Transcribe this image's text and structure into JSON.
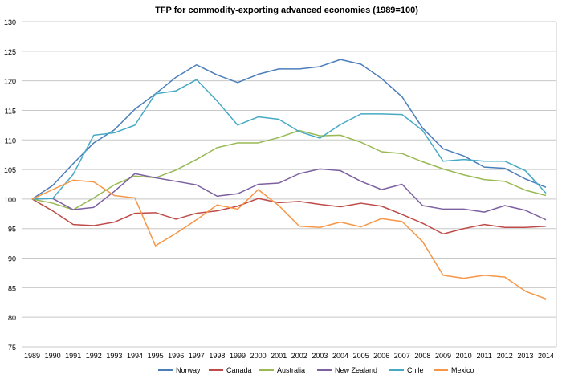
{
  "chart_data": {
    "type": "line",
    "title": "TFP for commodity-exporting advanced economies (1989=100)",
    "xlabel": "",
    "ylabel": "",
    "ylim": [
      75,
      130
    ],
    "yticks": [
      75,
      80,
      85,
      90,
      95,
      100,
      105,
      110,
      115,
      120,
      125,
      130
    ],
    "grid": true,
    "legend": "bottom",
    "x": [
      "1989",
      "1990",
      "1991",
      "1992",
      "1993",
      "1994",
      "1995",
      "1996",
      "1997",
      "1998",
      "1999",
      "2000",
      "2001",
      "2002",
      "2003",
      "2004",
      "2005",
      "2006",
      "2007",
      "2008",
      "2009",
      "2010",
      "2011",
      "2012",
      "2013",
      "2014"
    ],
    "series": [
      {
        "name": "Norway",
        "color": "#4a7ebb",
        "values": [
          100,
          102.3,
          106,
          109.5,
          111.7,
          115.2,
          117.8,
          120.6,
          122.7,
          121,
          119.7,
          121.1,
          122,
          122,
          122.4,
          123.6,
          122.8,
          120.4,
          117.3,
          112,
          108.5,
          107.3,
          105.4,
          105.2,
          103.4,
          102
        ]
      },
      {
        "name": "Canada",
        "color": "#be4b48",
        "values": [
          100,
          98,
          95.7,
          95.5,
          96.1,
          97.6,
          97.7,
          96.6,
          97.6,
          98,
          98.8,
          100.1,
          99.4,
          99.6,
          99.1,
          98.7,
          99.3,
          98.8,
          97.4,
          95.9,
          94.1,
          95,
          95.7,
          95.2,
          95.2,
          95.4
        ]
      },
      {
        "name": "Australia",
        "color": "#98b954",
        "values": [
          100,
          99.3,
          98.2,
          100.2,
          102.4,
          103.9,
          103.6,
          104.9,
          106.7,
          108.7,
          109.5,
          109.5,
          110.4,
          111.6,
          110.7,
          110.8,
          109.6,
          108,
          107.7,
          106.3,
          105.1,
          104.1,
          103.3,
          103,
          101.5,
          100.6
        ]
      },
      {
        "name": "New Zealand",
        "color": "#7d60a0",
        "values": [
          100,
          100.1,
          98.2,
          98.6,
          101.3,
          104.3,
          103.6,
          103,
          102.4,
          100.5,
          100.9,
          102.5,
          102.7,
          104.3,
          105.1,
          104.8,
          103,
          101.6,
          102.5,
          98.9,
          98.3,
          98.3,
          97.8,
          98.9,
          98.1,
          96.5
        ]
      },
      {
        "name": "Chile",
        "color": "#46aac5",
        "values": [
          100,
          100.1,
          104.2,
          110.8,
          111.2,
          112.5,
          117.8,
          118.3,
          120.2,
          116.6,
          112.5,
          113.9,
          113.5,
          111.4,
          110.3,
          112.6,
          114.4,
          114.4,
          114.3,
          111.6,
          106.4,
          106.7,
          106.4,
          106.4,
          104.8,
          101
        ]
      },
      {
        "name": "Mexico",
        "color": "#f79646",
        "values": [
          100,
          101.6,
          103.2,
          102.9,
          100.6,
          100.2,
          92.1,
          94.2,
          96.5,
          99,
          98.3,
          101.6,
          98.9,
          95.4,
          95.2,
          96.1,
          95.3,
          96.7,
          96.2,
          92.8,
          87.1,
          86.6,
          87.1,
          86.8,
          84.4,
          83.1
        ]
      }
    ]
  }
}
